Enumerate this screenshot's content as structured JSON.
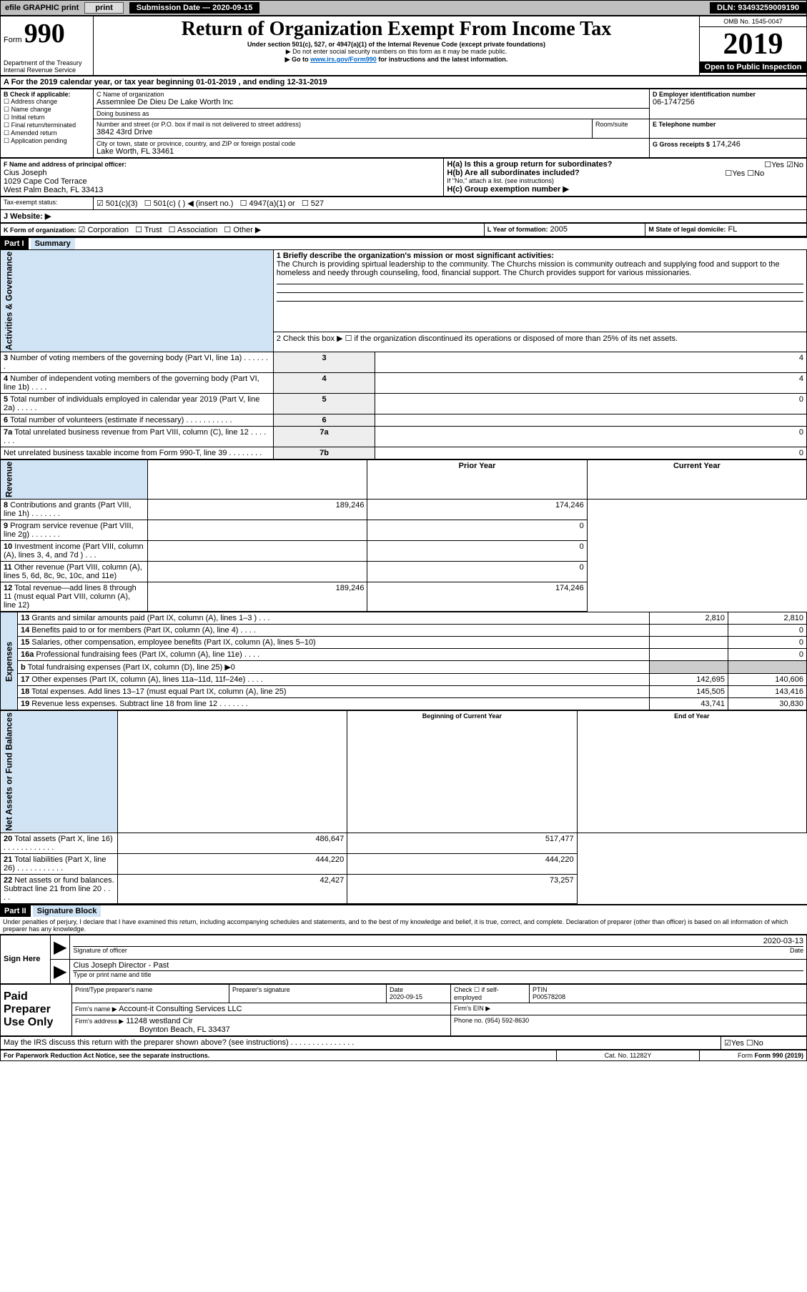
{
  "topbar": {
    "efile": "efile GRAPHIC print",
    "submission_label": "Submission Date — 2020-09-15",
    "dln": "DLN: 93493259009190"
  },
  "header": {
    "form_word": "Form",
    "form_no": "990",
    "title": "Return of Organization Exempt From Income Tax",
    "subtitle": "Under section 501(c), 527, or 4947(a)(1) of the Internal Revenue Code (except private foundations)",
    "note1": "▶ Do not enter social security numbers on this form as it may be made public.",
    "note2_pre": "▶ Go to ",
    "note2_link": "www.irs.gov/Form990",
    "note2_post": " for instructions and the latest information.",
    "dept": "Department of the Treasury\nInternal Revenue Service",
    "omb": "OMB No. 1545-0047",
    "year": "2019",
    "open": "Open to Public Inspection"
  },
  "period": {
    "line": "A For the 2019 calendar year, or tax year beginning 01-01-2019    , and ending 12-31-2019"
  },
  "boxB": {
    "title": "B Check if applicable:",
    "items": [
      "Address change",
      "Name change",
      "Initial return",
      "Final return/terminated",
      "Amended return",
      "Application pending"
    ]
  },
  "boxC": {
    "label_name": "C Name of organization",
    "org_name": "Assemnlee De Dieu De Lake Worth Inc",
    "dba_label": "Doing business as",
    "addr_label": "Number and street (or P.O. box if mail is not delivered to street address)",
    "room_label": "Room/suite",
    "addr": "3842 43rd Drive",
    "city_label": "City or town, state or province, country, and ZIP or foreign postal code",
    "city": "Lake Worth, FL  33461"
  },
  "boxD": {
    "label": "D Employer identification number",
    "val": "06-1747256"
  },
  "boxE": {
    "label": "E Telephone number"
  },
  "boxG": {
    "label": "G Gross receipts $",
    "val": "174,246"
  },
  "boxF": {
    "label": "F  Name and address of principal officer:",
    "name": "Cius Joseph",
    "addr1": "1029 Cape Cod Terrace",
    "addr2": "West Palm Beach, FL  33413"
  },
  "boxH": {
    "a": "H(a)  Is this a group return for subordinates?",
    "b": "H(b)  Are all subordinates included?",
    "b_note": "If \"No,\" attach a list. (see instructions)",
    "c": "H(c)  Group exemption number ▶",
    "yes": "Yes",
    "no": "No"
  },
  "taxexempt": {
    "label": "Tax-exempt status:",
    "o501c3": "501(c)(3)",
    "o501c": "501(c) (  ) ◀ (insert no.)",
    "o4947": "4947(a)(1) or",
    "o527": "527"
  },
  "website": {
    "label": "J  Website: ▶"
  },
  "boxK": {
    "label": "K Form of organization:",
    "corp": "Corporation",
    "trust": "Trust",
    "assoc": "Association",
    "other": "Other ▶"
  },
  "boxL": {
    "label": "L Year of formation:",
    "val": "2005"
  },
  "boxM": {
    "label": "M State of legal domicile:",
    "val": "FL"
  },
  "part1": {
    "hdr": "Part I",
    "title": "Summary",
    "q1": "1  Briefly describe the organization's mission or most significant activities:",
    "mission": "The Church is providing spirtual leadership to the community. The Churchs mission is community outreach and supplying food and support to the homeless and needy through counseling, food, financial support. The Church provides support for various missionaries.",
    "q2": "2  Check this box ▶ ☐ if the organization discontinued its operations or disposed of more than 25% of its net assets.",
    "rows_gov": [
      {
        "n": "3",
        "t": "Number of voting members of the governing body (Part VI, line 1a)  .   .   .   .   .   .   .",
        "box": "3",
        "v": "4"
      },
      {
        "n": "4",
        "t": "Number of independent voting members of the governing body (Part VI, line 1b)  .   .   .   .",
        "box": "4",
        "v": "4"
      },
      {
        "n": "5",
        "t": "Total number of individuals employed in calendar year 2019 (Part V, line 2a)  .   .   .   .   .",
        "box": "5",
        "v": "0"
      },
      {
        "n": "6",
        "t": "Total number of volunteers (estimate if necessary)   .   .   .   .   .   .   .   .   .   .   .",
        "box": "6",
        "v": ""
      },
      {
        "n": "7a",
        "t": "Total unrelated business revenue from Part VIII, column (C), line 12  .   .   .   .   .   .   .",
        "box": "7a",
        "v": "0"
      },
      {
        "n": "",
        "t": "Net unrelated business taxable income from Form 990-T, line 39  .   .   .   .   .   .   .   .",
        "box": "7b",
        "v": "0"
      }
    ],
    "col_prior": "Prior Year",
    "col_curr": "Current Year",
    "rev": [
      {
        "n": "8",
        "t": "Contributions and grants (Part VIII, line 1h)   .   .   .   .   .   .   .",
        "p": "189,246",
        "c": "174,246"
      },
      {
        "n": "9",
        "t": "Program service revenue (Part VIII, line 2g)  .   .   .   .   .   .   .",
        "p": "",
        "c": "0"
      },
      {
        "n": "10",
        "t": "Investment income (Part VIII, column (A), lines 3, 4, and 7d )  .   .   .",
        "p": "",
        "c": "0"
      },
      {
        "n": "11",
        "t": "Other revenue (Part VIII, column (A), lines 5, 6d, 8c, 9c, 10c, and 11e)",
        "p": "",
        "c": "0"
      },
      {
        "n": "12",
        "t": "Total revenue—add lines 8 through 11 (must equal Part VIII, column (A), line 12)",
        "p": "189,246",
        "c": "174,246"
      }
    ],
    "exp": [
      {
        "n": "13",
        "t": "Grants and similar amounts paid (Part IX, column (A), lines 1–3 )  .   .   .",
        "p": "2,810",
        "c": "2,810"
      },
      {
        "n": "14",
        "t": "Benefits paid to or for members (Part IX, column (A), line 4)  .   .   .   .",
        "p": "",
        "c": "0"
      },
      {
        "n": "15",
        "t": "Salaries, other compensation, employee benefits (Part IX, column (A), lines 5–10)",
        "p": "",
        "c": "0"
      },
      {
        "n": "16a",
        "t": "Professional fundraising fees (Part IX, column (A), line 11e)  .   .   .   .",
        "p": "",
        "c": "0"
      },
      {
        "n": "b",
        "t": "Total fundraising expenses (Part IX, column (D), line 25) ▶0",
        "p": "shade",
        "c": "shade"
      },
      {
        "n": "17",
        "t": "Other expenses (Part IX, column (A), lines 11a–11d, 11f–24e)  .   .   .   .",
        "p": "142,695",
        "c": "140,606"
      },
      {
        "n": "18",
        "t": "Total expenses. Add lines 13–17 (must equal Part IX, column (A), line 25)",
        "p": "145,505",
        "c": "143,416"
      },
      {
        "n": "19",
        "t": "Revenue less expenses. Subtract line 18 from line 12 .   .   .   .   .   .   .",
        "p": "43,741",
        "c": "30,830"
      }
    ],
    "net_hdr_l": "Beginning of Current Year",
    "net_hdr_r": "End of Year",
    "net": [
      {
        "n": "20",
        "t": "Total assets (Part X, line 16)  .   .   .   .   .   .   .   .   .   .   .   .",
        "p": "486,647",
        "c": "517,477"
      },
      {
        "n": "21",
        "t": "Total liabilities (Part X, line 26)  .   .   .   .   .   .   .   .   .   .   .",
        "p": "444,220",
        "c": "444,220"
      },
      {
        "n": "22",
        "t": "Net assets or fund balances. Subtract line 21 from line 20  .   .   .   .",
        "p": "42,427",
        "c": "73,257"
      }
    ],
    "side_gov": "Activities & Governance",
    "side_rev": "Revenue",
    "side_exp": "Expenses",
    "side_net": "Net Assets or Fund Balances"
  },
  "part2": {
    "hdr": "Part II",
    "title": "Signature Block",
    "decl": "Under penalties of perjury, I declare that I have examined this return, including accompanying schedules and statements, and to the best of my knowledge and belief, it is true, correct, and complete. Declaration of preparer (other than officer) is based on all information of which preparer has any knowledge.",
    "sign_here": "Sign Here",
    "sig_officer": "Signature of officer",
    "date": "2020-03-13",
    "date_lbl": "Date",
    "name_title": "Cius Joseph  Director - Past",
    "type_lbl": "Type or print name and title",
    "paid": "Paid Preparer Use Only",
    "prep_name_lbl": "Print/Type preparer's name",
    "prep_sig_lbl": "Preparer's signature",
    "prep_date_lbl": "Date",
    "prep_date": "2020-09-15",
    "check_lbl": "Check ☐ if self-employed",
    "ptin_lbl": "PTIN",
    "ptin": "P00578208",
    "firm_name_lbl": "Firm's name   ▶",
    "firm_name": "Account-it Consulting Services LLC",
    "firm_ein_lbl": "Firm's EIN ▶",
    "firm_addr_lbl": "Firm's address ▶",
    "firm_addr1": "11248 westland Cir",
    "firm_addr2": "Boynton Beach, FL  33437",
    "phone_lbl": "Phone no.",
    "phone": "(954) 592-8630",
    "discuss": "May the IRS discuss this return with the preparer shown above? (see instructions)   .   .   .   .   .   .   .   .   .   .   .   .   .   .   .",
    "yes": "Yes",
    "no": "No"
  },
  "footer": {
    "pra": "For Paperwork Reduction Act Notice, see the separate instructions.",
    "cat": "Cat. No. 11282Y",
    "form": "Form 990 (2019)"
  }
}
